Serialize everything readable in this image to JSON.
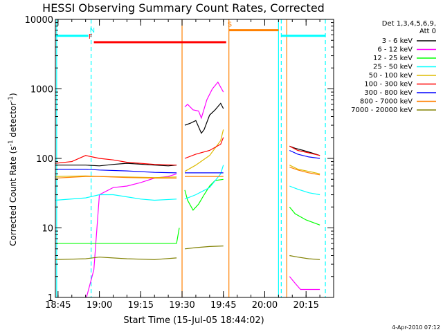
{
  "chart_data": {
    "type": "line",
    "title": "HESSI Observing Summary Count Rates, Corrected",
    "xlabel": "Start Time (15-Jul-05 18:44:02)",
    "ylabel": "Corrected Count Rate (s",
    "ylabel_sup1": "-1",
    "ylabel_mid": " detector",
    "ylabel_sup2": "-1",
    "ylabel_end": ")",
    "y_scale": "log",
    "ylim": [
      1,
      10000
    ],
    "y_ticks": [
      {
        "value": 1,
        "label": "1"
      },
      {
        "value": 10,
        "label": "10"
      },
      {
        "value": 100,
        "label": "100"
      },
      {
        "value": 1000,
        "label": "1000"
      },
      {
        "value": 10000,
        "label": "10000"
      }
    ],
    "xlim": [
      "18:44:02",
      "20:25:00"
    ],
    "x_ticks": [
      {
        "value": "18:45",
        "label": "18:45"
      },
      {
        "value": "19:00",
        "label": "19:00"
      },
      {
        "value": "19:15",
        "label": "19:15"
      },
      {
        "value": "19:30",
        "label": "19:30"
      },
      {
        "value": "19:45",
        "label": "19:45"
      },
      {
        "value": "20:00",
        "label": "20:00"
      },
      {
        "value": "20:15",
        "label": "20:15"
      }
    ],
    "legend": {
      "position": "top-right, outside plot",
      "header": [
        "Det 1,3,4,5,6,9,",
        "Att 0"
      ]
    },
    "series": [
      {
        "name": "3 - 6 keV",
        "color": "#000000",
        "segments": [
          {
            "x": [
              "18:44",
              "18:55",
              "19:00",
              "19:05",
              "19:10",
              "19:20",
              "19:25",
              "19:28"
            ],
            "y": [
              80,
              80,
              78,
              82,
              85,
              80,
              78,
              80
            ]
          },
          {
            "x": [
              "19:31",
              "19:33",
              "19:35",
              "19:37",
              "19:38",
              "19:40",
              "19:42",
              "19:44",
              "19:45"
            ],
            "y": [
              300,
              320,
              350,
              230,
              260,
              420,
              500,
              620,
              520
            ]
          },
          {
            "x": [
              "20:09",
              "20:11",
              "20:14",
              "20:17",
              "20:20"
            ],
            "y": [
              150,
              140,
              130,
              120,
              110
            ]
          }
        ]
      },
      {
        "name": "6 - 12 keV",
        "color": "#ff00ff",
        "segments": [
          {
            "x": [
              "18:44",
              "18:55",
              "18:58",
              "19:00",
              "19:05",
              "19:10",
              "19:15",
              "19:20",
              "19:25",
              "19:28"
            ],
            "y": [
              0.9,
              0.9,
              2.5,
              30,
              38,
              40,
              45,
              52,
              55,
              60
            ]
          },
          {
            "x": [
              "19:31",
              "19:32",
              "19:34",
              "19:36",
              "19:37",
              "19:39",
              "19:41",
              "19:43",
              "19:45"
            ],
            "y": [
              550,
              600,
              500,
              480,
              380,
              700,
              1000,
              1250,
              900
            ]
          },
          {
            "x": [
              "20:09",
              "20:11",
              "20:13",
              "20:20"
            ],
            "y": [
              2,
              1.6,
              1.3,
              1.3
            ]
          }
        ]
      },
      {
        "name": "12 - 25 keV",
        "color": "#00ff00",
        "segments": [
          {
            "x": [
              "18:44",
              "18:55",
              "19:00",
              "19:10",
              "19:20",
              "19:28",
              "19:29"
            ],
            "y": [
              6,
              6,
              6,
              6,
              6,
              6,
              10
            ]
          },
          {
            "x": [
              "19:31",
              "19:32",
              "19:34",
              "19:36",
              "19:38",
              "19:40",
              "19:42",
              "19:45"
            ],
            "y": [
              35,
              25,
              18,
              22,
              30,
              40,
              48,
              50
            ]
          },
          {
            "x": [
              "20:09",
              "20:11",
              "20:15",
              "20:20"
            ],
            "y": [
              20,
              16,
              13,
              11
            ]
          }
        ]
      },
      {
        "name": "25 - 50 keV",
        "color": "#00ffff",
        "segments": [
          {
            "x": [
              "18:44",
              "18:55",
              "19:00",
              "19:05",
              "19:10",
              "19:15",
              "19:20",
              "19:28"
            ],
            "y": [
              25,
              27,
              30,
              30,
              28,
              26,
              25,
              26
            ]
          },
          {
            "x": [
              "19:31",
              "19:35",
              "19:40",
              "19:44",
              "19:45"
            ],
            "y": [
              26,
              30,
              38,
              60,
              80
            ]
          },
          {
            "x": [
              "20:09",
              "20:12",
              "20:16",
              "20:20"
            ],
            "y": [
              40,
              36,
              32,
              30
            ]
          }
        ]
      },
      {
        "name": "50 - 100 keV",
        "color": "#ddbb00",
        "segments": [
          {
            "x": [
              "18:44",
              "18:55",
              "19:00",
              "19:10",
              "19:20",
              "19:28"
            ],
            "y": [
              55,
              56,
              55,
              54,
              53,
              54
            ]
          },
          {
            "x": [
              "19:31",
              "19:35",
              "19:40",
              "19:44",
              "19:45"
            ],
            "y": [
              65,
              80,
              110,
              180,
              260
            ]
          },
          {
            "x": [
              "20:09",
              "20:12",
              "20:16",
              "20:20"
            ],
            "y": [
              80,
              70,
              65,
              60
            ]
          }
        ]
      },
      {
        "name": "100 - 300 keV",
        "color": "#ff0000",
        "segments": [
          {
            "x": [
              "18:44",
              "18:50",
              "18:55",
              "19:00",
              "19:05",
              "19:10",
              "19:20",
              "19:28"
            ],
            "y": [
              85,
              90,
              110,
              100,
              95,
              88,
              82,
              80
            ]
          },
          {
            "x": [
              "19:31",
              "19:35",
              "19:40",
              "19:44",
              "19:45"
            ],
            "y": [
              100,
              115,
              130,
              160,
              200
            ]
          },
          {
            "x": [
              "20:09",
              "20:12",
              "20:16",
              "20:20"
            ],
            "y": [
              150,
              130,
              120,
              110
            ]
          }
        ]
      },
      {
        "name": "300 - 800 keV",
        "color": "#0000ff",
        "segments": [
          {
            "x": [
              "18:44",
              "18:55",
              "19:00",
              "19:10",
              "19:20",
              "19:28"
            ],
            "y": [
              70,
              70,
              68,
              66,
              63,
              62
            ]
          },
          {
            "x": [
              "19:31",
              "19:35",
              "19:40",
              "19:45"
            ],
            "y": [
              62,
              62,
              62,
              62
            ]
          },
          {
            "x": [
              "20:09",
              "20:12",
              "20:16",
              "20:20"
            ],
            "y": [
              130,
              115,
              105,
              100
            ]
          }
        ]
      },
      {
        "name": "800 - 7000 keV",
        "color": "#ff8000",
        "segments": [
          {
            "x": [
              "18:44",
              "18:55",
              "19:00",
              "19:10",
              "19:20",
              "19:28"
            ],
            "y": [
              52,
              55,
              55,
              53,
              52,
              52
            ]
          },
          {
            "x": [
              "19:31",
              "19:35",
              "19:40",
              "19:45"
            ],
            "y": [
              55,
              55,
              55,
              55
            ]
          },
          {
            "x": [
              "20:09",
              "20:12",
              "20:16",
              "20:20"
            ],
            "y": [
              75,
              68,
              62,
              58
            ]
          }
        ]
      },
      {
        "name": "7000 - 20000 keV",
        "color": "#808000",
        "segments": [
          {
            "x": [
              "18:44",
              "18:55",
              "19:00",
              "19:10",
              "19:20",
              "19:28"
            ],
            "y": [
              3.5,
              3.6,
              3.8,
              3.6,
              3.5,
              3.7
            ]
          },
          {
            "x": [
              "19:31",
              "19:35",
              "19:40",
              "19:45"
            ],
            "y": [
              5,
              5.2,
              5.4,
              5.5
            ]
          },
          {
            "x": [
              "20:09",
              "20:12",
              "20:16",
              "20:20"
            ],
            "y": [
              4,
              3.8,
              3.6,
              3.5
            ]
          }
        ]
      }
    ],
    "flag_bars": [
      {
        "label": "",
        "color": "#00ffff",
        "x": [
          "18:44",
          "18:56"
        ],
        "y": 5800
      },
      {
        "label": "N",
        "color": "#00ffff",
        "x": [
          "18:57",
          "18:57"
        ],
        "y": 5800
      },
      {
        "label": "F",
        "color": "#ff0000",
        "x": [
          "18:58",
          "19:46"
        ],
        "y": 4700
      },
      {
        "label": "S",
        "color": "#ff8000",
        "x": [
          "19:47",
          "20:05"
        ],
        "y": 7000
      },
      {
        "label": "",
        "color": "#00ffff",
        "x": [
          "20:06",
          "20:22"
        ],
        "y": 5800
      }
    ],
    "vertical_lines": [
      {
        "x": "18:44:30",
        "color": "#00ffff",
        "style": "solid"
      },
      {
        "x": "18:57",
        "color": "#00ffff",
        "style": "dashed"
      },
      {
        "x": "19:30",
        "color": "#ff8000",
        "style": "solid"
      },
      {
        "x": "19:47",
        "color": "#ff8000",
        "style": "solid"
      },
      {
        "x": "20:05",
        "color": "#00ffff",
        "style": "solid"
      },
      {
        "x": "20:06",
        "color": "#00ffff",
        "style": "dashed"
      },
      {
        "x": "20:08",
        "color": "#ff8000",
        "style": "solid"
      },
      {
        "x": "20:22",
        "color": "#00ffff",
        "style": "dashed"
      }
    ],
    "timestamp": "4-Apr-2010 07:12"
  }
}
